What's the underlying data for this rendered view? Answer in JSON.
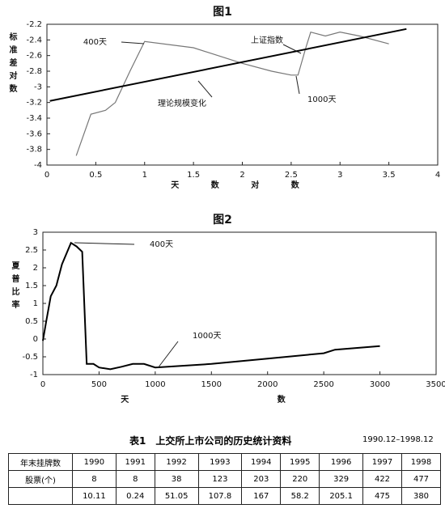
{
  "chart_data": [
    {
      "type": "line",
      "title": "图1",
      "xlabel": "天 数 对 数",
      "ylabel": "标准差对数",
      "xlim": [
        0,
        4
      ],
      "xticks": [
        0,
        0.5,
        1,
        1.5,
        2,
        2.5,
        3,
        3.5,
        4
      ],
      "ylim": [
        -4,
        -2.2
      ],
      "yticks": [
        -4,
        -3.8,
        -3.6,
        -3.4,
        -3.2,
        -3,
        -2.8,
        -2.6,
        -2.4,
        -2.2
      ],
      "series": [
        {
          "name": "上证指数",
          "color": "#777777",
          "x": [
            0.3,
            0.45,
            0.6,
            0.7,
            0.85,
            1.0,
            1.5,
            2.0,
            2.3,
            2.5,
            2.57,
            2.65,
            2.7,
            2.85,
            3.0,
            3.2,
            3.5
          ],
          "values": [
            -3.88,
            -3.35,
            -3.3,
            -3.2,
            -2.8,
            -2.42,
            -2.5,
            -2.7,
            -2.8,
            -2.85,
            -2.85,
            -2.5,
            -2.3,
            -2.35,
            -2.3,
            -2.35,
            -2.45
          ]
        },
        {
          "name": "理论规模变化",
          "color": "#000000",
          "x": [
            0.03,
            3.68
          ],
          "values": [
            -3.18,
            -2.26
          ]
        }
      ],
      "annotations": [
        "400天",
        "1000天"
      ]
    },
    {
      "type": "line",
      "title": "图2",
      "xlabel": "天 数",
      "ylabel": "夏普比率",
      "xlim": [
        0,
        3500
      ],
      "xticks": [
        0,
        500,
        1000,
        1500,
        2000,
        2500,
        3000,
        3500
      ],
      "ylim": [
        -1,
        3
      ],
      "yticks": [
        -1,
        -0.5,
        0,
        0.5,
        1,
        1.5,
        2,
        2.5,
        3
      ],
      "series": [
        {
          "color": "#000000",
          "x": [
            0,
            30,
            70,
            120,
            170,
            250,
            300,
            350,
            390,
            450,
            500,
            600,
            700,
            800,
            900,
            1000,
            1500,
            2000,
            2500,
            2600,
            3000
          ],
          "values": [
            -0.05,
            0.5,
            1.2,
            1.5,
            2.1,
            2.7,
            2.6,
            2.45,
            -0.7,
            -0.7,
            -0.8,
            -0.85,
            -0.78,
            -0.7,
            -0.7,
            -0.8,
            -0.7,
            -0.55,
            -0.4,
            -0.3,
            -0.2
          ]
        }
      ],
      "annotations": [
        "400天",
        "1000天"
      ]
    }
  ],
  "table": {
    "title": "表1　上交所上市公司的历史统计资料",
    "note": "1990.12–1998.12",
    "rows": [
      [
        "年末挂牌数",
        "1990",
        "1991",
        "1992",
        "1993",
        "1994",
        "1995",
        "1996",
        "1997",
        "1998"
      ],
      [
        "股票(个)",
        8,
        8,
        38,
        123,
        203,
        220,
        329,
        422,
        477
      ],
      [
        null,
        10.11,
        0.24,
        51.05,
        107.8,
        167,
        58.2,
        205.1,
        475,
        380
      ]
    ]
  }
}
